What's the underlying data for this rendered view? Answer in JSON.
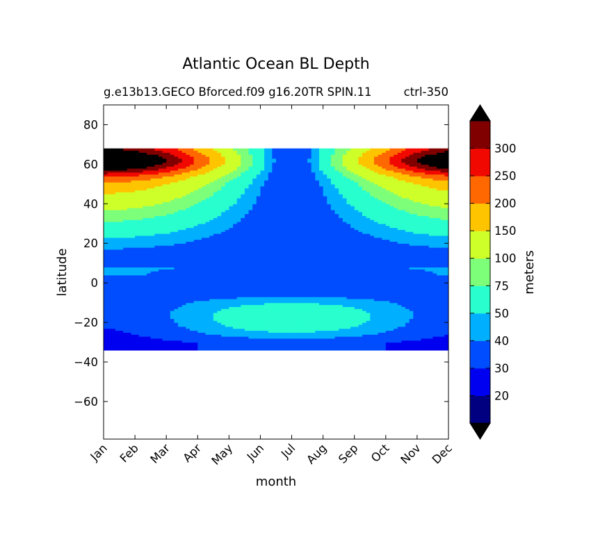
{
  "chart_data": {
    "type": "contourf",
    "title": "Atlantic Ocean BL Depth",
    "subtitle_left": "g.e13b13.GECO Bforced.f09 g16.20TR SPIN.11",
    "subtitle_right": "ctrl-350",
    "xlabel": "month",
    "ylabel": "latitude",
    "x_ticks": [
      "Jan",
      "Feb",
      "Mar",
      "Apr",
      "May",
      "Jun",
      "Jul",
      "Aug",
      "Sep",
      "Oct",
      "Nov",
      "Dec"
    ],
    "xlim": [
      0,
      11
    ],
    "y_ticks": [
      80,
      60,
      40,
      20,
      0,
      -20,
      -40,
      -60
    ],
    "y_tick_labels": [
      "80",
      "60",
      "40",
      "20",
      "0",
      "−20",
      "−40",
      "−60"
    ],
    "ylim": [
      -79,
      90
    ],
    "data_lat_range": [
      -34,
      68
    ],
    "colorbar": {
      "label": "meters",
      "levels": [
        10,
        20,
        30,
        40,
        50,
        75,
        100,
        150,
        200,
        250,
        300,
        350
      ],
      "tick_labels": [
        "20",
        "30",
        "40",
        "50",
        "75",
        "100",
        "150",
        "200",
        "250",
        "300"
      ],
      "colors": [
        "#000080",
        "#0000f1",
        "#004dff",
        "#00b0ff",
        "#29ffce",
        "#7dff7a",
        "#ceff29",
        "#ffc400",
        "#ff6800",
        "#f10800",
        "#800000"
      ],
      "extend": "both",
      "under_color": "#000000",
      "over_color": "#000000"
    }
  }
}
